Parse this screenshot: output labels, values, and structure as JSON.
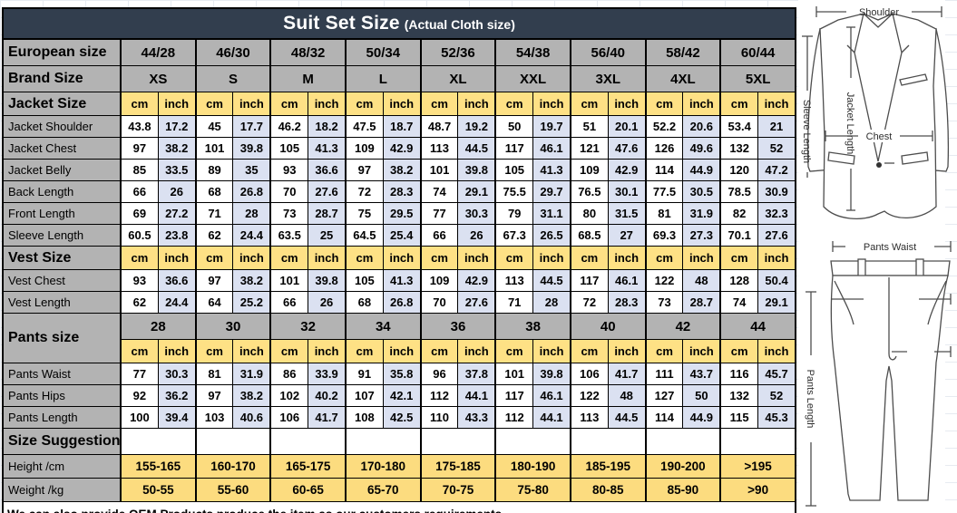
{
  "title": {
    "main": "Suit Set Size",
    "sub": "(Actual Cloth size)"
  },
  "colors": {
    "title_bg": "#323e4e",
    "header_gray": "#b3b3b3",
    "unit_yellow": "#fee185",
    "inch_blue": "#dbe1f1",
    "range_yellow": "#fcdc7f"
  },
  "chart_data": {
    "type": "table",
    "unit_cm": "cm",
    "unit_inch": "inch",
    "rows": [
      {
        "kind": "group",
        "label": "European size",
        "values": [
          "44/28",
          "46/30",
          "48/32",
          "50/34",
          "52/36",
          "54/38",
          "56/40",
          "58/42",
          "60/44"
        ]
      },
      {
        "kind": "group",
        "label": "Brand Size",
        "values": [
          "XS",
          "S",
          "M",
          "L",
          "XL",
          "XXL",
          "3XL",
          "4XL",
          "5XL"
        ]
      },
      {
        "kind": "units",
        "label": "Jacket Size"
      },
      {
        "kind": "data",
        "label": "Jacket Shoulder",
        "values": [
          43.8,
          17.2,
          45,
          17.7,
          46.2,
          18.2,
          47.5,
          18.7,
          48.7,
          19.2,
          50,
          19.7,
          51,
          20.1,
          52.2,
          20.6,
          53.4,
          21
        ]
      },
      {
        "kind": "data",
        "label": "Jacket Chest",
        "values": [
          97,
          38.2,
          101,
          39.8,
          105,
          41.3,
          109,
          42.9,
          113,
          44.5,
          117,
          46.1,
          121,
          47.6,
          126,
          49.6,
          132,
          52
        ]
      },
      {
        "kind": "data",
        "label": "Jacket Belly",
        "values": [
          85,
          33.5,
          89,
          35,
          93,
          36.6,
          97,
          38.2,
          101,
          39.8,
          105,
          41.3,
          109,
          42.9,
          114,
          44.9,
          120,
          47.2
        ]
      },
      {
        "kind": "data",
        "label": "Back Length",
        "values": [
          66,
          26,
          68,
          26.8,
          70,
          27.6,
          72,
          28.3,
          74,
          29.1,
          75.5,
          29.7,
          76.5,
          30.1,
          77.5,
          30.5,
          78.5,
          30.9
        ]
      },
      {
        "kind": "data",
        "label": "Front Length",
        "values": [
          69,
          27.2,
          71,
          28,
          73,
          28.7,
          75,
          29.5,
          77,
          30.3,
          79,
          31.1,
          80,
          31.5,
          81,
          31.9,
          82,
          32.3
        ]
      },
      {
        "kind": "data",
        "label": "Sleeve Length",
        "values": [
          60.5,
          23.8,
          62,
          24.4,
          63.5,
          25,
          64.5,
          25.4,
          66,
          26,
          67.3,
          26.5,
          68.5,
          27,
          69.3,
          27.3,
          70.1,
          27.6
        ]
      },
      {
        "kind": "units",
        "label": "Vest Size"
      },
      {
        "kind": "data",
        "label": "Vest Chest",
        "values": [
          93,
          36.6,
          97,
          38.2,
          101,
          39.8,
          105,
          41.3,
          109,
          42.9,
          113,
          44.5,
          117,
          46.1,
          122,
          48,
          128,
          50.4
        ]
      },
      {
        "kind": "data",
        "label": "Vest Length",
        "values": [
          62,
          24.4,
          64,
          25.2,
          66,
          26,
          68,
          26.8,
          70,
          27.6,
          71,
          28,
          72,
          28.3,
          73,
          28.7,
          74,
          29.1
        ]
      },
      {
        "kind": "pants",
        "label": "Pants size",
        "values": [
          "28",
          "30",
          "32",
          "34",
          "36",
          "38",
          "40",
          "42",
          "44"
        ]
      },
      {
        "kind": "data",
        "label": "Pants Waist",
        "values": [
          77,
          30.3,
          81,
          31.9,
          86,
          33.9,
          91,
          35.8,
          96,
          37.8,
          101,
          39.8,
          106,
          41.7,
          111,
          43.7,
          116,
          45.7
        ]
      },
      {
        "kind": "data",
        "label": "Pants Hips",
        "values": [
          92,
          36.2,
          97,
          38.2,
          102,
          40.2,
          107,
          42.1,
          112,
          44.1,
          117,
          46.1,
          122,
          48,
          127,
          50,
          132,
          52
        ]
      },
      {
        "kind": "data",
        "label": "Pants Length",
        "values": [
          100,
          39.4,
          103,
          40.6,
          106,
          41.7,
          108,
          42.5,
          110,
          43.3,
          112,
          44.1,
          113,
          44.5,
          114,
          44.9,
          115,
          45.3
        ]
      },
      {
        "kind": "blank",
        "label": "Size Suggestion"
      },
      {
        "kind": "range",
        "label": "Height /cm",
        "values": [
          "155-165",
          "160-170",
          "165-175",
          "170-180",
          "175-185",
          "180-190",
          "185-195",
          "190-200",
          ">195"
        ]
      },
      {
        "kind": "range",
        "label": "Weight /kg",
        "values": [
          "50-55",
          "55-60",
          "60-65",
          "65-70",
          "70-75",
          "75-80",
          "80-85",
          "85-90",
          ">90"
        ]
      },
      {
        "kind": "note",
        "text": "We can also provide OEM Products,produce the item as our customers requirements"
      }
    ]
  },
  "diagram": {
    "labels": {
      "shoulder": "Shoulder",
      "chest": "Chest",
      "jacket_length": "Jacket Length",
      "sleeve_length": "Sleeve Length",
      "pants_waist": "Pants Waist",
      "pants_length": "Pants Length"
    }
  }
}
